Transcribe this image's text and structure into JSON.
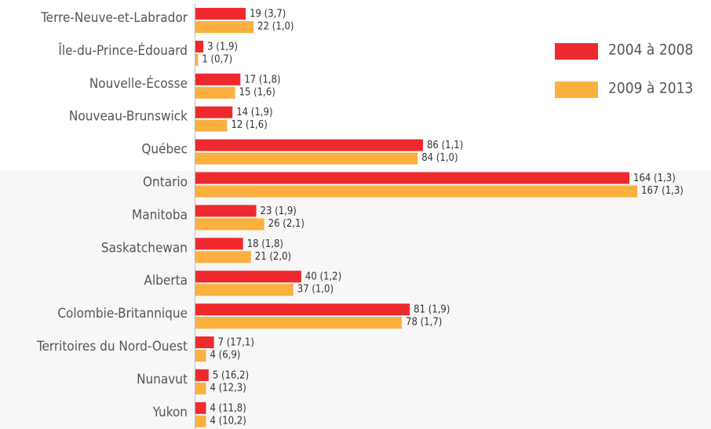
{
  "chart_data": {
    "type": "bar",
    "orientation": "horizontal",
    "categories": [
      "Terre-Neuve-et-Labrador",
      "Île-du-Prince-Édouard",
      "Nouvelle-Écosse",
      "Nouveau-Brunswick",
      "Québec",
      "Ontario",
      "Manitoba",
      "Saskatchewan",
      "Alberta",
      "Colombie-Britannique",
      "Territoires du Nord-Ouest",
      "Nunavut",
      "Yukon"
    ],
    "series": [
      {
        "name": "2004 à 2008",
        "color": "#ee2a2f",
        "values": [
          19,
          3,
          17,
          14,
          86,
          164,
          23,
          18,
          40,
          81,
          7,
          5,
          4
        ],
        "value_labels": [
          "19 (3,7)",
          "3 (1,9)",
          "17 (1,8)",
          "14 (1,9)",
          "86 (1,1)",
          "164 (1,3)",
          "23 (1,9)",
          "18 (1,8)",
          "40 (1,2)",
          "81 (1,9)",
          "7 (17,1)",
          "5 (16,2)",
          "4 (11,8)"
        ]
      },
      {
        "name": "2009 à 2013",
        "color": "#fbb040",
        "values": [
          22,
          1,
          15,
          12,
          84,
          167,
          26,
          21,
          37,
          78,
          4,
          4,
          4
        ],
        "value_labels": [
          "22 (1,0)",
          "1 (0,7)",
          "15 (1,6)",
          "12 (1,6)",
          "84 (1,0)",
          "167 (1,3)",
          "26 (2,1)",
          "21 (2,0)",
          "37 (1,0)",
          "78 (1,7)",
          "4 (6,9)",
          "4 (12,3)",
          "4 (10,2)"
        ]
      }
    ],
    "legend": "top-right"
  }
}
